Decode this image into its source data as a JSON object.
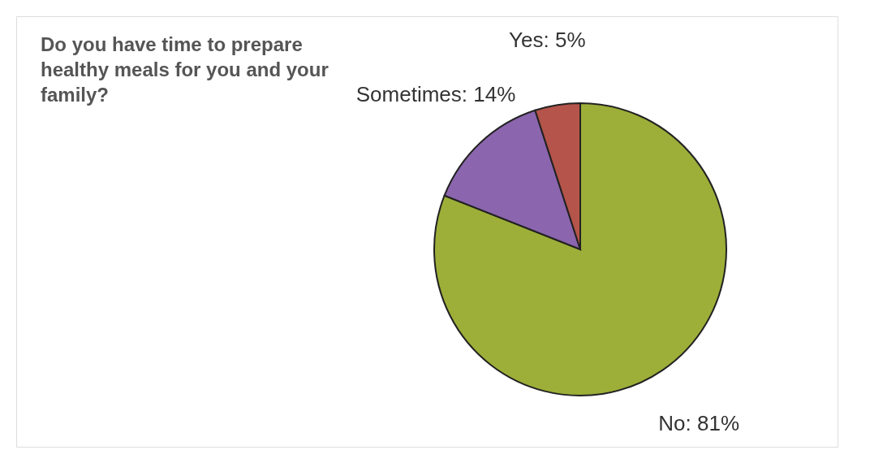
{
  "chart_data": {
    "type": "pie",
    "title": "Do you have time to prepare healthy meals for you and your family?",
    "categories": [
      "No",
      "Sometimes",
      "Yes"
    ],
    "values": [
      81,
      14,
      5
    ],
    "colors": [
      "#9daf38",
      "#8b65ae",
      "#b5544a"
    ],
    "value_labels": [
      "81%",
      "14%",
      "5%"
    ]
  }
}
